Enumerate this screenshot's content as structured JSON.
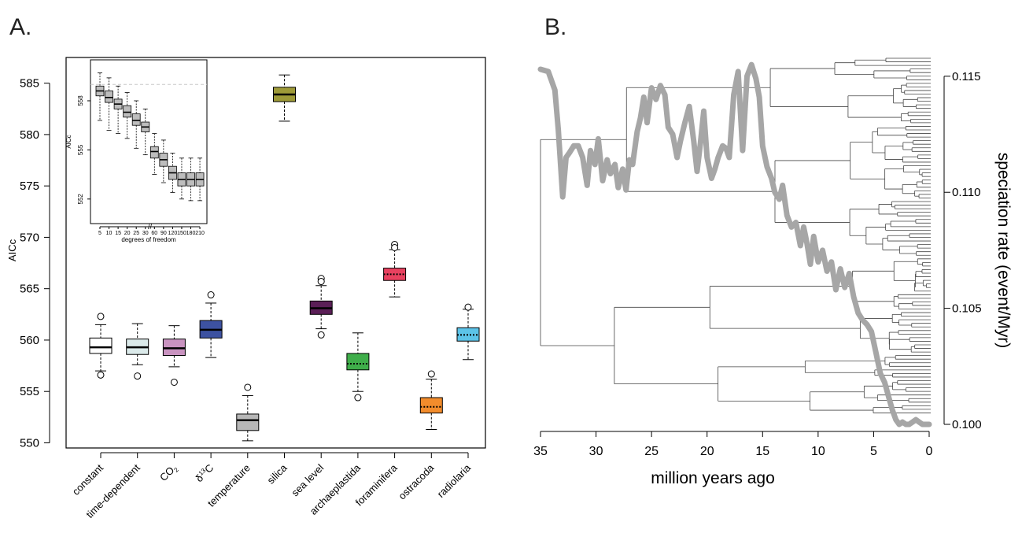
{
  "panels": {
    "a_label": "A.",
    "b_label": "B."
  },
  "chart_data": [
    {
      "type": "box",
      "panel": "A",
      "ylabel": "AICc",
      "ylim": [
        549.5,
        587.5
      ],
      "yticks": [
        550,
        555,
        560,
        565,
        570,
        575,
        580,
        585
      ],
      "categories": [
        "constant",
        "time-dependent",
        "CO₂",
        "δ¹³C",
        "temperature",
        "silica",
        "sea level",
        "archaeplastida",
        "foraminifera",
        "ostracoda",
        "radiolaria"
      ],
      "category_labels": [
        {
          "main": "constant"
        },
        {
          "main": "time-dependent"
        },
        {
          "main": "CO",
          "sub": "2"
        },
        {
          "pre": "δ",
          "sup": "13",
          "main": "C"
        },
        {
          "main": "temperature"
        },
        {
          "main": "silica"
        },
        {
          "main": "sea level"
        },
        {
          "main": "archaeplastida"
        },
        {
          "main": "foraminifera"
        },
        {
          "main": "ostracoda"
        },
        {
          "main": "radiolaria"
        }
      ],
      "boxes": [
        {
          "name": "constant",
          "color": "#ffffff",
          "q1": 558.7,
          "median": 559.3,
          "q3": 560.2,
          "wlo": 557.0,
          "whi": 561.5,
          "median_style": "solid",
          "outliers": [
            562.3,
            556.6
          ]
        },
        {
          "name": "time-dependent",
          "color": "#dbeaea",
          "q1": 558.6,
          "median": 559.3,
          "q3": 560.1,
          "wlo": 557.6,
          "whi": 561.6,
          "median_style": "solid",
          "outliers": [
            556.5
          ]
        },
        {
          "name": "CO2",
          "color": "#c993c0",
          "q1": 558.5,
          "median": 559.2,
          "q3": 560.1,
          "wlo": 557.4,
          "whi": 561.4,
          "median_style": "solid",
          "outliers": [
            555.9
          ]
        },
        {
          "name": "d13C",
          "color": "#3d52a1",
          "q1": 560.2,
          "median": 561.0,
          "q3": 561.9,
          "wlo": 558.3,
          "whi": 563.6,
          "median_style": "solid",
          "outliers": [
            564.4
          ]
        },
        {
          "name": "temperature",
          "color": "#b7b7b7",
          "q1": 551.2,
          "median": 552.2,
          "q3": 552.8,
          "wlo": 550.2,
          "whi": 554.6,
          "median_style": "solid",
          "outliers": [
            555.4
          ]
        },
        {
          "name": "silica",
          "color": "#9e9a38",
          "q1": 583.2,
          "median": 583.9,
          "q3": 584.6,
          "wlo": 581.3,
          "whi": 585.8,
          "median_style": "solid",
          "outliers": []
        },
        {
          "name": "sea level",
          "color": "#5b1f57",
          "q1": 562.5,
          "median": 563.1,
          "q3": 563.8,
          "wlo": 561.1,
          "whi": 565.3,
          "median_style": "solid",
          "outliers": [
            566.0,
            565.7,
            560.5
          ]
        },
        {
          "name": "archaeplastida",
          "color": "#3fae4a",
          "q1": 557.1,
          "median": 557.7,
          "q3": 558.7,
          "wlo": 555.0,
          "whi": 560.7,
          "median_style": "dotted",
          "outliers": [
            554.4
          ]
        },
        {
          "name": "foraminifera",
          "color": "#e8415f",
          "q1": 565.8,
          "median": 566.4,
          "q3": 567.0,
          "wlo": 564.2,
          "whi": 568.8,
          "median_style": "dotted",
          "outliers": [
            569.3,
            569.0
          ]
        },
        {
          "name": "ostracoda",
          "color": "#f28c2c",
          "q1": 552.9,
          "median": 553.5,
          "q3": 554.4,
          "wlo": 551.3,
          "whi": 556.2,
          "median_style": "dotted",
          "outliers": [
            556.7
          ]
        },
        {
          "name": "radiolaria",
          "color": "#5cc3e8",
          "q1": 559.9,
          "median": 560.5,
          "q3": 561.2,
          "wlo": 558.1,
          "whi": 563.0,
          "median_style": "dotted",
          "outliers": [
            563.2
          ]
        }
      ],
      "inset": {
        "type": "box",
        "xlabel": "degrees of freedom",
        "ylabel": "AICc",
        "ylim": [
          550.5,
          560.5
        ],
        "yticks": [
          552,
          555,
          558
        ],
        "categories": [
          "5",
          "10",
          "15",
          "20",
          "25",
          "30",
          "60",
          "90",
          "120",
          "150",
          "180",
          "210"
        ],
        "axis_break": "//",
        "reference_line": 559.0,
        "boxes": [
          {
            "q1": 558.3,
            "median": 558.6,
            "q3": 558.9,
            "wlo": 556.8,
            "whi": 559.7
          },
          {
            "q1": 557.9,
            "median": 558.2,
            "q3": 558.6,
            "wlo": 556.2,
            "whi": 559.4
          },
          {
            "q1": 557.5,
            "median": 557.8,
            "q3": 558.1,
            "wlo": 556.0,
            "whi": 558.9
          },
          {
            "q1": 557.0,
            "median": 557.3,
            "q3": 557.7,
            "wlo": 555.7,
            "whi": 558.5
          },
          {
            "q1": 556.5,
            "median": 556.8,
            "q3": 557.2,
            "wlo": 555.1,
            "whi": 558.0
          },
          {
            "q1": 556.1,
            "median": 556.4,
            "q3": 556.7,
            "wlo": 554.7,
            "whi": 557.5
          },
          {
            "q1": 554.5,
            "median": 554.9,
            "q3": 555.2,
            "wlo": 553.5,
            "whi": 556.0
          },
          {
            "q1": 554.0,
            "median": 554.4,
            "q3": 554.8,
            "wlo": 553.0,
            "whi": 555.6
          },
          {
            "q1": 553.2,
            "median": 553.6,
            "q3": 554.0,
            "wlo": 552.4,
            "whi": 554.8
          },
          {
            "q1": 552.8,
            "median": 553.2,
            "q3": 553.6,
            "wlo": 552.0,
            "whi": 554.5
          },
          {
            "q1": 552.8,
            "median": 553.2,
            "q3": 553.6,
            "wlo": 551.9,
            "whi": 554.5
          },
          {
            "q1": 552.8,
            "median": 553.2,
            "q3": 553.6,
            "wlo": 551.9,
            "whi": 554.5
          }
        ]
      }
    },
    {
      "type": "line",
      "panel": "B",
      "xlabel": "million years ago",
      "ylabel": "speciation rate (event/Myr)",
      "xlim": [
        35,
        0
      ],
      "xticks": [
        35,
        30,
        25,
        20,
        15,
        10,
        5,
        0
      ],
      "ylim": [
        0.1,
        0.1153
      ],
      "yticks": [
        0.1,
        0.105,
        0.11,
        0.115
      ],
      "ytick_labels": [
        "0.100",
        "0.105",
        "0.110",
        "0.115"
      ],
      "series": [
        {
          "color": "#a6a6a6",
          "x": [
            35.0,
            34.3,
            33.7,
            33.4,
            33.0,
            32.7,
            32.4,
            32.0,
            31.6,
            31.2,
            30.8,
            30.5,
            30.1,
            29.8,
            29.4,
            29.0,
            28.7,
            28.3,
            28.0,
            27.6,
            27.3,
            27.0,
            26.7,
            26.3,
            26.0,
            25.7,
            25.4,
            25.0,
            24.6,
            24.2,
            23.8,
            23.5,
            23.1,
            22.7,
            22.4,
            22.0,
            21.6,
            21.2,
            20.9,
            20.6,
            20.3,
            20.0,
            19.6,
            19.3,
            19.0,
            18.6,
            18.3,
            18.0,
            17.6,
            17.2,
            16.8,
            16.4,
            16.0,
            15.6,
            15.3,
            15.0,
            14.6,
            14.2,
            13.9,
            13.5,
            13.2,
            12.8,
            12.4,
            12.0,
            11.6,
            11.3,
            11.0,
            10.7,
            10.4,
            10.0,
            9.6,
            9.2,
            8.8,
            8.4,
            8.0,
            7.6,
            7.2,
            6.8,
            6.4,
            6.0,
            5.6,
            5.2,
            4.8,
            4.4,
            4.0,
            3.6,
            3.3,
            3.0,
            2.7,
            2.4,
            2.1,
            1.8,
            1.5,
            1.2,
            0.9,
            0.6,
            0.3,
            0.0
          ],
          "y": [
            0.1153,
            0.1152,
            0.1144,
            0.1127,
            0.1098,
            0.1115,
            0.1117,
            0.112,
            0.112,
            0.1115,
            0.1103,
            0.1118,
            0.1112,
            0.1123,
            0.1105,
            0.1114,
            0.1108,
            0.1112,
            0.1102,
            0.111,
            0.1101,
            0.1114,
            0.1112,
            0.1126,
            0.1132,
            0.1141,
            0.113,
            0.1145,
            0.114,
            0.1146,
            0.1142,
            0.1128,
            0.1125,
            0.1115,
            0.1122,
            0.113,
            0.1137,
            0.1122,
            0.1109,
            0.1121,
            0.1135,
            0.1115,
            0.1106,
            0.111,
            0.1115,
            0.112,
            0.1119,
            0.1115,
            0.1142,
            0.1152,
            0.1118,
            0.115,
            0.1155,
            0.1149,
            0.1141,
            0.112,
            0.1111,
            0.1106,
            0.11,
            0.1097,
            0.1103,
            0.109,
            0.1085,
            0.1087,
            0.1077,
            0.1085,
            0.1078,
            0.1069,
            0.1081,
            0.107,
            0.1075,
            0.1066,
            0.107,
            0.1058,
            0.1067,
            0.1059,
            0.1065,
            0.1055,
            0.1048,
            0.1045,
            0.1043,
            0.104,
            0.1031,
            0.1022,
            0.1018,
            0.1011,
            0.1006,
            0.1002,
            0.1,
            0.1001,
            0.1,
            0.1,
            0.1001,
            0.1002,
            0.1001,
            0.1,
            0.1,
            0.1
          ]
        }
      ]
    }
  ]
}
